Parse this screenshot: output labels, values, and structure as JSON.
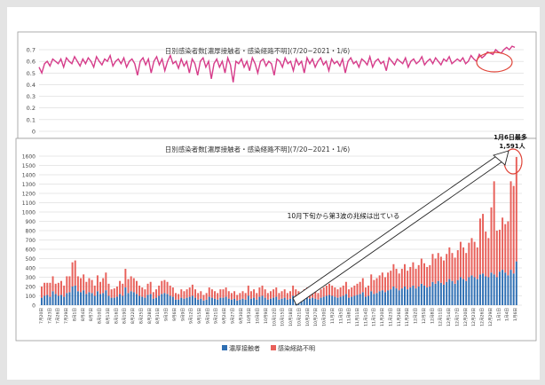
{
  "colors": {
    "ratio_line": "#d63c8a",
    "close_contact": "#2f6fb3",
    "unknown_route": "#e8605a",
    "annotation": "#e0463a",
    "grid": "#cfcfcf",
    "border": "#9a9a9a"
  },
  "chart_data": [
    {
      "type": "line",
      "title": "日別感染者数[濃厚接触者・感染経路不明](7/20~2021・1/6)",
      "ylim": [
        0,
        0.7
      ],
      "yticks": [
        "0",
        "0.1",
        "0.2",
        "0.3",
        "0.4",
        "0.5",
        "0.6",
        "0.7"
      ],
      "grid": true,
      "x_count": 171,
      "series": [
        {
          "values": [
            0.55,
            0.5,
            0.58,
            0.6,
            0.56,
            0.62,
            0.6,
            0.58,
            0.62,
            0.55,
            0.63,
            0.6,
            0.58,
            0.64,
            0.6,
            0.56,
            0.62,
            0.58,
            0.63,
            0.6,
            0.55,
            0.64,
            0.6,
            0.57,
            0.62,
            0.6,
            0.65,
            0.56,
            0.6,
            0.62,
            0.58,
            0.63,
            0.55,
            0.6,
            0.62,
            0.58,
            0.48,
            0.6,
            0.63,
            0.57,
            0.62,
            0.5,
            0.6,
            0.64,
            0.57,
            0.62,
            0.52,
            0.6,
            0.65,
            0.58,
            0.6,
            0.54,
            0.62,
            0.56,
            0.6,
            0.5,
            0.62,
            0.58,
            0.48,
            0.6,
            0.63,
            0.55,
            0.6,
            0.45,
            0.58,
            0.62,
            0.55,
            0.6,
            0.5,
            0.63,
            0.57,
            0.42,
            0.6,
            0.58,
            0.62,
            0.55,
            0.6,
            0.52,
            0.63,
            0.58,
            0.5,
            0.6,
            0.62,
            0.56,
            0.6,
            0.58,
            0.48,
            0.62,
            0.6,
            0.55,
            0.63,
            0.58,
            0.6,
            0.52,
            0.62,
            0.57,
            0.6,
            0.5,
            0.63,
            0.58,
            0.62,
            0.55,
            0.6,
            0.63,
            0.57,
            0.6,
            0.52,
            0.62,
            0.58,
            0.6,
            0.56,
            0.62,
            0.5,
            0.6,
            0.63,
            0.58,
            0.6,
            0.55,
            0.62,
            0.6,
            0.57,
            0.64,
            0.55,
            0.6,
            0.62,
            0.58,
            0.6,
            0.52,
            0.63,
            0.6,
            0.57,
            0.62,
            0.6,
            0.58,
            0.63,
            0.55,
            0.6,
            0.62,
            0.58,
            0.6,
            0.64,
            0.57,
            0.6,
            0.62,
            0.58,
            0.63,
            0.6,
            0.57,
            0.62,
            0.6,
            0.64,
            0.58,
            0.6,
            0.62,
            0.6,
            0.63,
            0.58,
            0.6,
            0.65,
            0.62,
            0.6,
            0.66,
            0.63,
            0.65,
            0.68,
            0.67,
            0.66,
            0.7,
            0.68,
            0.67,
            0.7,
            0.72,
            0.7,
            0.73,
            0.72
          ]
        }
      ]
    },
    {
      "type": "bar",
      "stacked": true,
      "title": "日別感染者数[濃厚接触者・感染経路不明](7/20~2021・1/6)",
      "ylim": [
        0,
        1600
      ],
      "yticks": [
        "0",
        "100",
        "200",
        "300",
        "400",
        "500",
        "600",
        "700",
        "800",
        "900",
        "1000",
        "1100",
        "1200",
        "1300",
        "1400",
        "1500",
        "1600"
      ],
      "grid": true,
      "legend_position": "bottom",
      "xtick_labels": [
        "7月20日",
        "7月23日",
        "7月26日",
        "7月29日",
        "8月1日",
        "8月4日",
        "8月7日",
        "8月10日",
        "8月13日",
        "8月16日",
        "8月19日",
        "8月22日",
        "8月25日",
        "8月28日",
        "8月31日",
        "9月3日",
        "9月6日",
        "9月9日",
        "9月12日",
        "9月15日",
        "9月18日",
        "9月21日",
        "9月24日",
        "9月27日",
        "9月30日",
        "10月3日",
        "10月6日",
        "10月9日",
        "10月12日",
        "10月15日",
        "10月18日",
        "10月21日",
        "10月24日",
        "10月27日",
        "10月30日",
        "11月2日",
        "11月5日",
        "11月8日",
        "11月11日",
        "11月14日",
        "11月17日",
        "11月20日",
        "11月23日",
        "11月26日",
        "11月29日",
        "12月2日",
        "12月5日",
        "12月8日",
        "12月11日",
        "12月14日",
        "12月17日",
        "12月20日",
        "12月23日",
        "12月26日",
        "12月29日",
        "1月1日",
        "1月4日",
        "1月6日"
      ],
      "series": [
        {
          "name": "濃厚接触者",
          "values": [
            80,
            100,
            110,
            90,
            150,
            120,
            100,
            110,
            90,
            130,
            140,
            200,
            210,
            150,
            140,
            160,
            120,
            140,
            130,
            100,
            150,
            120,
            130,
            160,
            100,
            80,
            80,
            90,
            120,
            100,
            190,
            130,
            150,
            140,
            120,
            100,
            90,
            80,
            110,
            120,
            70,
            80,
            100,
            120,
            130,
            120,
            100,
            90,
            60,
            60,
            80,
            70,
            80,
            90,
            100,
            80,
            60,
            70,
            50,
            60,
            90,
            80,
            70,
            60,
            80,
            80,
            90,
            70,
            60,
            70,
            50,
            60,
            70,
            60,
            100,
            70,
            80,
            60,
            90,
            100,
            80,
            60,
            70,
            80,
            90,
            60,
            70,
            80,
            60,
            70,
            100,
            80,
            70,
            60,
            80,
            90,
            70,
            80,
            70,
            60,
            80,
            90,
            100,
            110,
            100,
            90,
            80,
            90,
            100,
            120,
            80,
            90,
            100,
            110,
            120,
            140,
            90,
            100,
            150,
            120,
            130,
            150,
            160,
            140,
            160,
            170,
            200,
            180,
            160,
            180,
            200,
            170,
            190,
            210,
            180,
            200,
            230,
            210,
            190,
            200,
            250,
            230,
            260,
            240,
            220,
            250,
            280,
            260,
            230,
            270,
            300,
            280,
            260,
            300,
            320,
            300,
            280,
            330,
            340,
            310,
            300,
            350,
            330,
            300,
            360,
            380,
            350,
            320,
            380,
            340,
            470
          ]
        },
        {
          "name": "感染経路不明",
          "values": [
            120,
            140,
            130,
            150,
            160,
            110,
            140,
            150,
            120,
            180,
            170,
            260,
            270,
            160,
            150,
            170,
            130,
            150,
            140,
            110,
            170,
            130,
            160,
            190,
            130,
            90,
            100,
            110,
            140,
            130,
            200,
            150,
            160,
            150,
            140,
            110,
            100,
            90,
            120,
            130,
            70,
            90,
            110,
            140,
            140,
            130,
            110,
            100,
            70,
            60,
            90,
            80,
            90,
            100,
            120,
            90,
            70,
            80,
            60,
            70,
            100,
            90,
            80,
            70,
            90,
            90,
            100,
            80,
            70,
            80,
            60,
            70,
            80,
            70,
            110,
            80,
            90,
            70,
            100,
            110,
            90,
            70,
            80,
            90,
            100,
            70,
            80,
            90,
            70,
            80,
            110,
            90,
            80,
            70,
            90,
            100,
            80,
            90,
            80,
            70,
            90,
            100,
            110,
            120,
            110,
            100,
            90,
            100,
            110,
            130,
            90,
            100,
            110,
            120,
            130,
            150,
            100,
            110,
            180,
            150,
            160,
            170,
            190,
            160,
            190,
            200,
            240,
            210,
            180,
            210,
            240,
            200,
            220,
            250,
            210,
            230,
            270,
            240,
            220,
            230,
            300,
            270,
            300,
            280,
            260,
            300,
            340,
            300,
            280,
            320,
            380,
            340,
            300,
            370,
            400,
            380,
            340,
            600,
            640,
            480,
            420,
            700,
            1000,
            500,
            450,
            560,
            520,
            580,
            950,
            940,
            1121
          ]
        }
      ],
      "annotations": [
        "1月6日最多",
        "1,591人",
        "10月下旬から第3波の兆候は出ている"
      ]
    }
  ]
}
